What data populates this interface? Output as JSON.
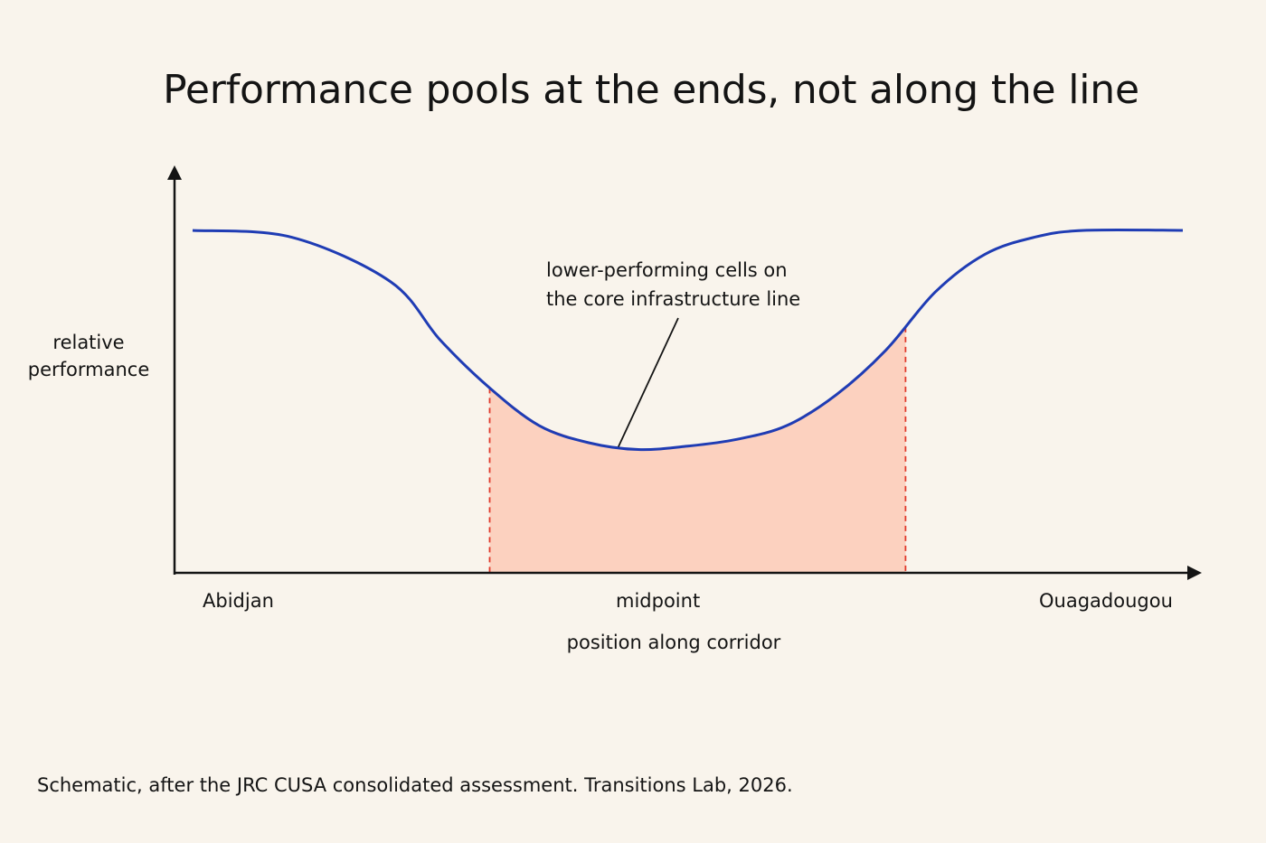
{
  "chart_data": {
    "type": "line",
    "title": "Performance pools at the ends, not along the line",
    "ylabel": [
      "relative",
      "performance"
    ],
    "xlabel": "position along corridor",
    "x_ticks": [
      "Abidjan",
      "midpoint",
      "Ouagadougou"
    ],
    "xlim": [
      0,
      1
    ],
    "ylim": [
      0,
      1
    ],
    "grid": false,
    "legend": "none",
    "series": [
      {
        "x": [
          0,
          0.1,
          0.2,
          0.25,
          0.3,
          0.35,
          0.4,
          0.45,
          0.5,
          0.55,
          0.6,
          0.65,
          0.7,
          0.75,
          0.8,
          0.85,
          0.9,
          1
        ],
        "values": [
          1.0,
          0.98,
          0.85,
          0.68,
          0.54,
          0.43,
          0.38,
          0.36,
          0.37,
          0.39,
          0.43,
          0.52,
          0.65,
          0.82,
          0.93,
          0.98,
          1.0,
          1.0
        ]
      }
    ],
    "highlight": {
      "x_range": [
        0.3,
        0.72
      ],
      "label": [
        "lower-performing cells on",
        "the core infrastructure line"
      ]
    },
    "colors": {
      "line": "#1f3cb4",
      "highlight_fill": "#fcd1bf",
      "highlight_edge": "#e03a2c",
      "axis": "#141414",
      "background": "#f9f4ec"
    }
  },
  "caption": "Schematic, after the JRC CUSA consolidated assessment. Transitions Lab, 2026."
}
